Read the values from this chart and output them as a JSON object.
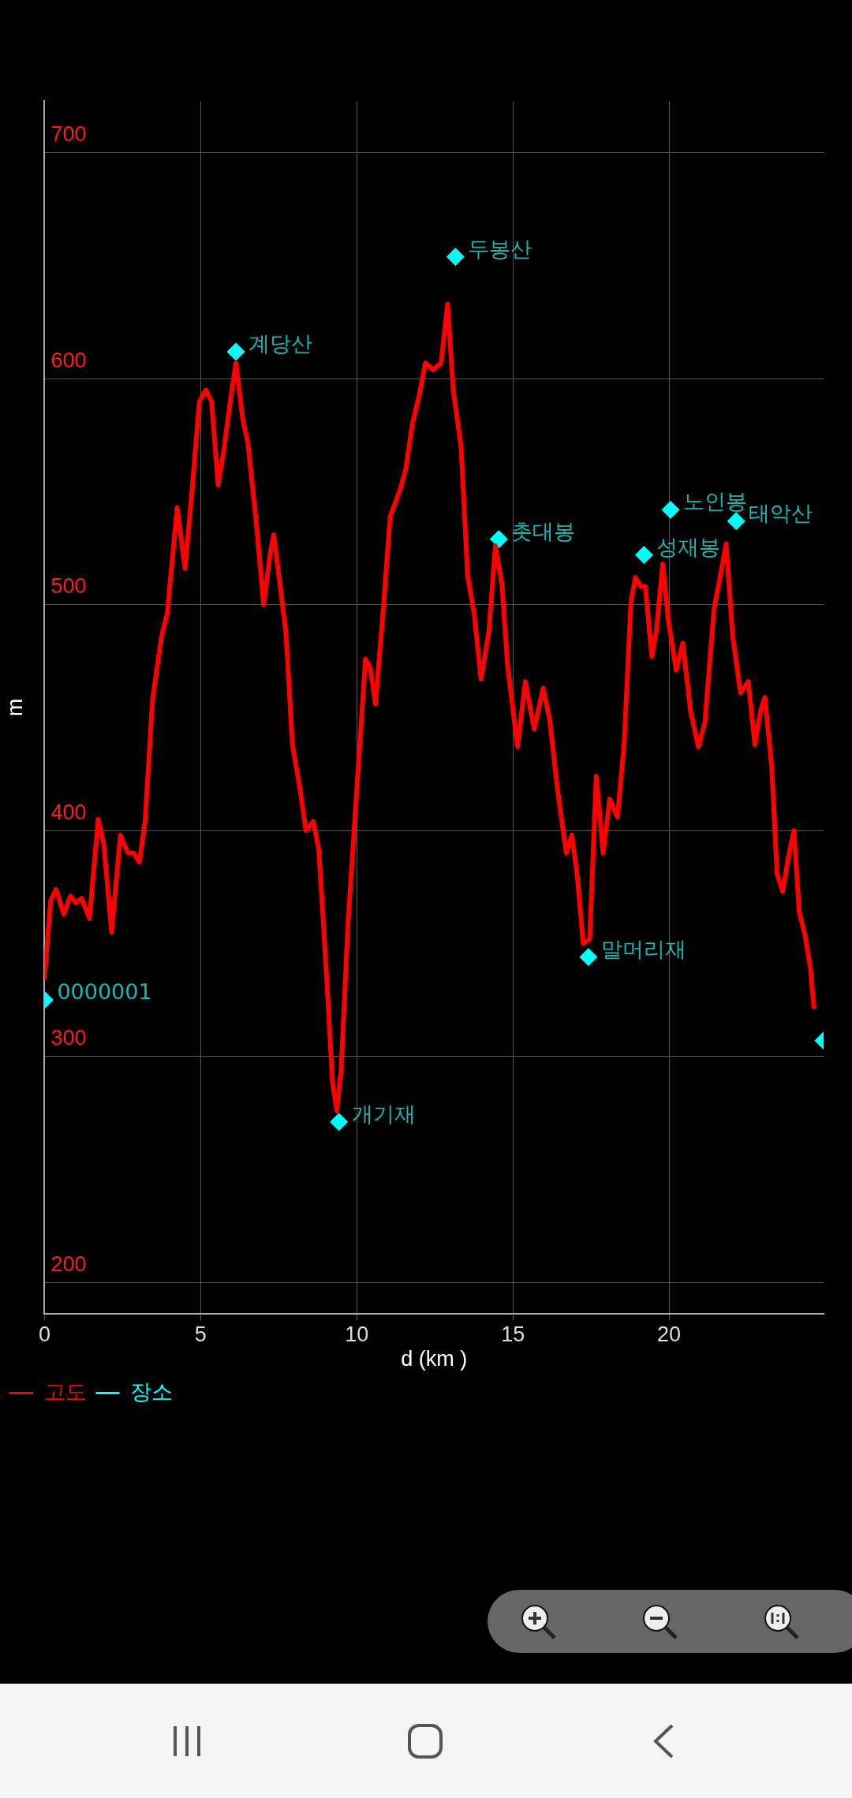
{
  "chart_data": {
    "type": "line",
    "xlabel": "d (km )",
    "ylabel": "m",
    "xlim": [
      0,
      24.95
    ],
    "ylim": [
      186,
      723
    ],
    "xticks": [
      0,
      5,
      10,
      15,
      20
    ],
    "yticks": [
      200,
      300,
      400,
      500,
      600,
      700
    ],
    "grid": true,
    "legend": "bottom left",
    "series": [
      {
        "name": "고도",
        "color": "#ff0000",
        "marker": "none",
        "x": [
          0,
          0.2,
          0.37,
          0.62,
          0.83,
          1.01,
          1.19,
          1.44,
          1.72,
          1.9,
          2.15,
          2.43,
          2.68,
          2.86,
          3.04,
          3.22,
          3.46,
          3.75,
          3.93,
          4.25,
          4.5,
          4.71,
          4.96,
          5.17,
          5.35,
          5.56,
          5.74,
          5.95,
          6.13,
          6.34,
          6.52,
          6.77,
          7.02,
          7.23,
          7.34,
          7.55,
          7.73,
          7.94,
          8.19,
          8.37,
          8.61,
          8.79,
          9.04,
          9.22,
          9.36,
          9.5,
          9.72,
          10.0,
          10.28,
          10.43,
          10.6,
          10.85,
          11.07,
          11.39,
          11.57,
          11.78,
          11.99,
          12.2,
          12.45,
          12.7,
          12.91,
          13.09,
          13.34,
          13.55,
          13.76,
          13.98,
          14.23,
          14.44,
          14.65,
          14.83,
          15.15,
          15.4,
          15.68,
          15.97,
          16.18,
          16.43,
          16.71,
          16.89,
          17.07,
          17.25,
          17.46,
          17.67,
          17.89,
          18.1,
          18.35,
          18.56,
          18.78,
          18.92,
          19.1,
          19.24,
          19.45,
          19.59,
          19.8,
          19.98,
          20.23,
          20.44,
          20.69,
          20.94,
          21.15,
          21.44,
          21.62,
          21.83,
          22.04,
          22.29,
          22.54,
          22.75,
          22.93,
          23.07,
          23.29,
          23.46,
          23.64,
          23.82,
          24.0,
          24.17,
          24.35,
          24.53,
          24.64
        ],
        "values": [
          335,
          369,
          374,
          363,
          371,
          368,
          370,
          361,
          405,
          394,
          355,
          398,
          390,
          390,
          386,
          404,
          458,
          486,
          496,
          543,
          516,
          548,
          590,
          595,
          590,
          553,
          568,
          590,
          607,
          583,
          571,
          538,
          500,
          523,
          531,
          508,
          488,
          438,
          418,
          400,
          404,
          391,
          334,
          289,
          276,
          294,
          359,
          418,
          476,
          472,
          456,
          498,
          539,
          551,
          560,
          580,
          592,
          607,
          604,
          607,
          633,
          595,
          570,
          513,
          496,
          467,
          488,
          526,
          509,
          473,
          437,
          466,
          445,
          463,
          449,
          418,
          390,
          398,
          379,
          350,
          352,
          424,
          390,
          414,
          406,
          438,
          501,
          512,
          508,
          508,
          477,
          488,
          518,
          493,
          471,
          483,
          453,
          437,
          448,
          498,
          511,
          527,
          486,
          461,
          466,
          438,
          453,
          459,
          428,
          381,
          373,
          388,
          400,
          364,
          354,
          339,
          322
        ]
      },
      {
        "name": "장소",
        "type": "scatter",
        "color": "#00ffff",
        "marker": "diamond",
        "x": [
          0,
          6.13,
          9.43,
          13.16,
          14.55,
          17.42,
          19.2,
          20.05,
          22.15,
          24.95
        ],
        "values": [
          325,
          612,
          271,
          654,
          529,
          344,
          522,
          542,
          537,
          307
        ]
      }
    ],
    "annotations": [
      {
        "text": "0000001",
        "x": 0,
        "y": 325
      },
      {
        "text": "계당산",
        "x": 6.13,
        "y": 612
      },
      {
        "text": "개기재",
        "x": 9.43,
        "y": 271
      },
      {
        "text": "두봉산",
        "x": 13.16,
        "y": 654
      },
      {
        "text": "촛대봉",
        "x": 14.55,
        "y": 529
      },
      {
        "text": "말머리재",
        "x": 17.42,
        "y": 344
      },
      {
        "text": "성재봉",
        "x": 19.2,
        "y": 522
      },
      {
        "text": "노인봉",
        "x": 20.05,
        "y": 542
      },
      {
        "text": "태악산",
        "x": 22.15,
        "y": 537
      }
    ]
  }
}
